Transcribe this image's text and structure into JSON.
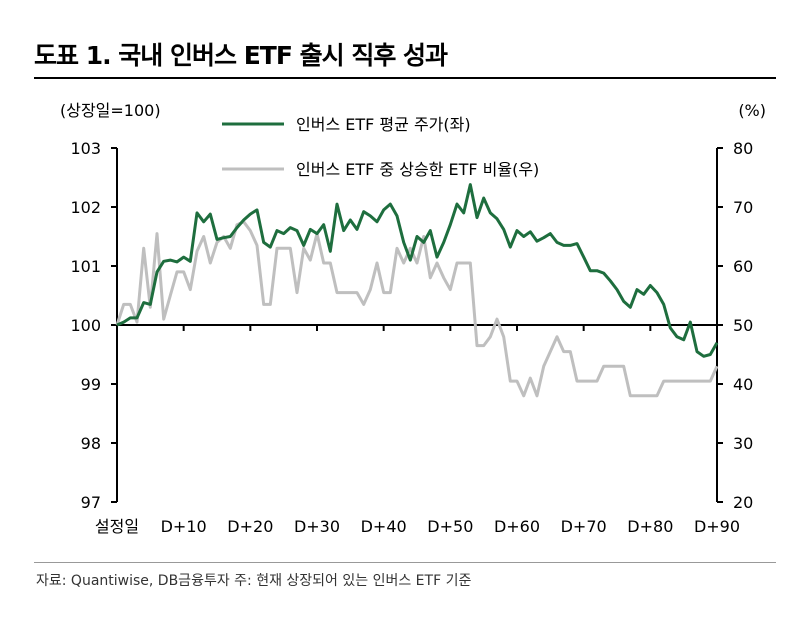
{
  "title": "도표 1. 국내 인버스 ETF 출시 직후 성과",
  "source": "자료: Quantiwise, DB금융투자 주: 현재 상장되어 있는 인버스 ETF 기준",
  "colors": {
    "series1": "#1e6e3e",
    "series2": "#bfbfbf",
    "axis": "#000000"
  },
  "chart_data": {
    "type": "line",
    "left_axis": {
      "label": "(상장일=100)",
      "min": 97,
      "max": 103,
      "ticks": [
        97,
        98,
        99,
        100,
        101,
        102,
        103
      ]
    },
    "right_axis": {
      "label": "(%)",
      "min": 20,
      "max": 80,
      "ticks": [
        20,
        30,
        40,
        50,
        60,
        70,
        80
      ]
    },
    "x_axis": {
      "min": 0,
      "max": 90,
      "ticks": [
        0,
        10,
        20,
        30,
        40,
        50,
        60,
        70,
        80,
        90
      ],
      "tick_labels": [
        "설정일",
        "D+10",
        "D+20",
        "D+30",
        "D+40",
        "D+50",
        "D+60",
        "D+70",
        "D+80",
        "D+90"
      ]
    },
    "series": [
      {
        "name": "인버스 ETF 평균 주가(좌)",
        "axis": "left",
        "points": [
          [
            0,
            100
          ],
          [
            1,
            100.05
          ],
          [
            2,
            100.12
          ],
          [
            3,
            100.12
          ],
          [
            4,
            100.38
          ],
          [
            5,
            100.35
          ],
          [
            6,
            100.9
          ],
          [
            7,
            101.08
          ],
          [
            8,
            101.1
          ],
          [
            9,
            101.07
          ],
          [
            10,
            101.15
          ],
          [
            11,
            101.08
          ],
          [
            12,
            101.9
          ],
          [
            13,
            101.75
          ],
          [
            14,
            101.88
          ],
          [
            15,
            101.45
          ],
          [
            16,
            101.48
          ],
          [
            17,
            101.5
          ],
          [
            18,
            101.65
          ],
          [
            19,
            101.78
          ],
          [
            20,
            101.88
          ],
          [
            21,
            101.95
          ],
          [
            22,
            101.4
          ],
          [
            23,
            101.32
          ],
          [
            24,
            101.6
          ],
          [
            25,
            101.55
          ],
          [
            26,
            101.65
          ],
          [
            27,
            101.6
          ],
          [
            28,
            101.35
          ],
          [
            29,
            101.62
          ],
          [
            30,
            101.55
          ],
          [
            31,
            101.7
          ],
          [
            32,
            101.25
          ],
          [
            33,
            102.05
          ],
          [
            34,
            101.6
          ],
          [
            35,
            101.78
          ],
          [
            36,
            101.62
          ],
          [
            37,
            101.92
          ],
          [
            38,
            101.85
          ],
          [
            39,
            101.75
          ],
          [
            40,
            101.95
          ],
          [
            41,
            102.05
          ],
          [
            42,
            101.85
          ],
          [
            43,
            101.4
          ],
          [
            44,
            101.1
          ],
          [
            45,
            101.5
          ],
          [
            46,
            101.4
          ],
          [
            47,
            101.6
          ],
          [
            48,
            101.15
          ],
          [
            49,
            101.4
          ],
          [
            50,
            101.7
          ],
          [
            51,
            102.05
          ],
          [
            52,
            101.9
          ],
          [
            53,
            102.38
          ],
          [
            54,
            101.82
          ],
          [
            55,
            102.15
          ],
          [
            56,
            101.9
          ],
          [
            57,
            101.8
          ],
          [
            58,
            101.62
          ],
          [
            59,
            101.32
          ],
          [
            60,
            101.6
          ],
          [
            61,
            101.5
          ],
          [
            62,
            101.58
          ],
          [
            63,
            101.42
          ],
          [
            64,
            101.48
          ],
          [
            65,
            101.55
          ],
          [
            66,
            101.4
          ],
          [
            67,
            101.35
          ],
          [
            68,
            101.35
          ],
          [
            69,
            101.38
          ],
          [
            70,
            101.15
          ],
          [
            71,
            100.92
          ],
          [
            72,
            100.92
          ],
          [
            73,
            100.88
          ],
          [
            74,
            100.75
          ],
          [
            75,
            100.6
          ],
          [
            76,
            100.4
          ],
          [
            77,
            100.3
          ],
          [
            78,
            100.6
          ],
          [
            79,
            100.52
          ],
          [
            80,
            100.67
          ],
          [
            81,
            100.55
          ],
          [
            82,
            100.35
          ],
          [
            83,
            99.95
          ],
          [
            84,
            99.8
          ],
          [
            85,
            99.75
          ],
          [
            86,
            100.05
          ],
          [
            87,
            99.55
          ],
          [
            88,
            99.47
          ],
          [
            89,
            99.5
          ],
          [
            90,
            99.7
          ]
        ]
      },
      {
        "name": "인버스 ETF 중 상승한 ETF 비율(우)",
        "axis": "right",
        "points": [
          [
            0,
            50
          ],
          [
            1,
            53.5
          ],
          [
            2,
            53.5
          ],
          [
            3,
            50.5
          ],
          [
            4,
            63
          ],
          [
            5,
            53
          ],
          [
            6,
            65.5
          ],
          [
            7,
            51
          ],
          [
            8,
            55
          ],
          [
            9,
            59
          ],
          [
            10,
            59
          ],
          [
            11,
            56
          ],
          [
            12,
            62.5
          ],
          [
            13,
            65
          ],
          [
            14,
            60.5
          ],
          [
            15,
            64
          ],
          [
            16,
            65
          ],
          [
            17,
            63
          ],
          [
            18,
            67
          ],
          [
            19,
            67.5
          ],
          [
            20,
            66
          ],
          [
            21,
            63.5
          ],
          [
            22,
            53.5
          ],
          [
            23,
            53.5
          ],
          [
            24,
            63
          ],
          [
            25,
            63
          ],
          [
            26,
            63
          ],
          [
            27,
            55.5
          ],
          [
            28,
            63
          ],
          [
            29,
            61
          ],
          [
            30,
            65.5
          ],
          [
            31,
            60.5
          ],
          [
            32,
            60.5
          ],
          [
            33,
            55.5
          ],
          [
            34,
            55.5
          ],
          [
            35,
            55.5
          ],
          [
            36,
            55.5
          ],
          [
            37,
            53.5
          ],
          [
            38,
            56
          ],
          [
            39,
            60.5
          ],
          [
            40,
            55.5
          ],
          [
            41,
            55.5
          ],
          [
            42,
            63
          ],
          [
            43,
            60.5
          ],
          [
            44,
            63
          ],
          [
            45,
            60.5
          ],
          [
            46,
            65
          ],
          [
            47,
            58
          ],
          [
            48,
            60.5
          ],
          [
            49,
            58
          ],
          [
            50,
            56
          ],
          [
            51,
            60.5
          ],
          [
            52,
            60.5
          ],
          [
            53,
            60.5
          ],
          [
            54,
            46.5
          ],
          [
            55,
            46.5
          ],
          [
            56,
            48
          ],
          [
            57,
            51
          ],
          [
            58,
            48
          ],
          [
            59,
            40.5
          ],
          [
            60,
            40.5
          ],
          [
            61,
            38
          ],
          [
            62,
            41
          ],
          [
            63,
            38
          ],
          [
            64,
            43
          ],
          [
            65,
            45.5
          ],
          [
            66,
            48
          ],
          [
            67,
            45.5
          ],
          [
            68,
            45.5
          ],
          [
            69,
            40.5
          ],
          [
            70,
            40.5
          ],
          [
            71,
            40.5
          ],
          [
            72,
            40.5
          ],
          [
            73,
            43
          ],
          [
            74,
            43
          ],
          [
            75,
            43
          ],
          [
            76,
            43
          ],
          [
            77,
            38
          ],
          [
            78,
            38
          ],
          [
            79,
            38
          ],
          [
            80,
            38
          ],
          [
            81,
            38
          ],
          [
            82,
            40.5
          ],
          [
            83,
            40.5
          ],
          [
            84,
            40.5
          ],
          [
            85,
            40.5
          ],
          [
            86,
            40.5
          ],
          [
            87,
            40.5
          ],
          [
            88,
            40.5
          ],
          [
            89,
            40.5
          ],
          [
            90,
            43
          ]
        ]
      }
    ]
  }
}
